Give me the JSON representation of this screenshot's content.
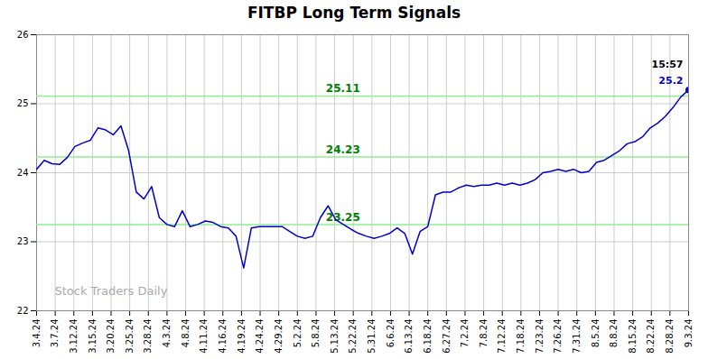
{
  "chart_data": {
    "type": "line",
    "title": "FITBP Long Term Signals",
    "color": "#0000cc",
    "x": [
      0,
      1,
      2,
      3,
      4,
      5,
      6,
      7,
      8,
      9,
      10,
      11,
      12,
      13,
      14,
      15,
      16,
      17,
      18,
      19,
      20,
      21,
      22,
      23,
      24,
      25,
      26,
      27,
      28,
      29,
      30,
      31,
      32,
      33,
      34,
      35,
      36,
      37,
      38,
      39,
      40,
      41,
      42,
      43,
      44,
      45,
      46,
      47,
      48,
      49,
      50,
      51,
      52,
      53,
      54,
      55,
      56,
      57,
      58,
      59,
      60,
      61,
      62,
      63,
      64,
      65,
      66,
      67,
      68,
      69,
      70,
      71,
      72,
      73,
      74,
      75,
      76,
      77,
      78,
      79,
      80,
      81,
      82,
      83,
      84,
      85
    ],
    "values": [
      24.05,
      24.18,
      24.13,
      24.12,
      24.22,
      24.38,
      24.43,
      24.47,
      24.65,
      24.62,
      24.55,
      24.68,
      24.32,
      23.72,
      23.62,
      23.8,
      23.35,
      23.25,
      23.22,
      23.45,
      23.22,
      23.25,
      23.3,
      23.28,
      23.22,
      23.2,
      23.08,
      22.62,
      23.2,
      23.22,
      23.22,
      23.22,
      23.22,
      23.15,
      23.08,
      23.05,
      23.08,
      23.35,
      23.52,
      23.32,
      23.25,
      23.18,
      23.12,
      23.08,
      23.05,
      23.08,
      23.12,
      23.2,
      23.12,
      22.82,
      23.15,
      23.22,
      23.68,
      23.72,
      23.72,
      23.78,
      23.82,
      23.8,
      23.82,
      23.82,
      23.85,
      23.82,
      23.85,
      23.82,
      23.85,
      23.9,
      24.0,
      24.02,
      24.05,
      24.02,
      24.05,
      24.0,
      24.02,
      24.15,
      24.18,
      24.25,
      24.32,
      24.42,
      24.45,
      24.52,
      24.65,
      24.72,
      24.82,
      24.95,
      25.1,
      25.2
    ],
    "xlim": [
      0,
      85
    ],
    "xticks": [
      {
        "value": 0,
        "label": "3.4.24"
      },
      {
        "value": 2.4285714285714284,
        "label": "3.7.24"
      },
      {
        "value": 4.857142857142857,
        "label": "3.12.24"
      },
      {
        "value": 7.285714285714286,
        "label": "3.15.24"
      },
      {
        "value": 9.714285714285714,
        "label": "3.20.24"
      },
      {
        "value": 12.142857142857142,
        "label": "3.25.24"
      },
      {
        "value": 14.571428571428571,
        "label": "3.28.24"
      },
      {
        "value": 17,
        "label": "4.3.24"
      },
      {
        "value": 19.428571428571427,
        "label": "4.8.24"
      },
      {
        "value": 21.857142857142858,
        "label": "4.11.24"
      },
      {
        "value": 24.285714285714285,
        "label": "4.16.24"
      },
      {
        "value": 26.714285714285715,
        "label": "4.19.24"
      },
      {
        "value": 29.142857142857142,
        "label": "4.24.24"
      },
      {
        "value": 31.571428571428573,
        "label": "4.29.24"
      },
      {
        "value": 34,
        "label": "5.2.24"
      },
      {
        "value": 36.42857142857143,
        "label": "5.8.24"
      },
      {
        "value": 38.857142857142854,
        "label": "5.13.24"
      },
      {
        "value": 41.285714285714285,
        "label": "5.22.24"
      },
      {
        "value": 43.714285714285715,
        "label": "5.31.24"
      },
      {
        "value": 46.142857142857146,
        "label": "6.6.24"
      },
      {
        "value": 48.57142857142857,
        "label": "6.13.24"
      },
      {
        "value": 51,
        "label": "6.18.24"
      },
      {
        "value": 53.42857142857143,
        "label": "6.27.24"
      },
      {
        "value": 55.857142857142854,
        "label": "7.2.24"
      },
      {
        "value": 58.285714285714285,
        "label": "7.8.24"
      },
      {
        "value": 60.714285714285715,
        "label": "7.12.24"
      },
      {
        "value": 63.142857142857146,
        "label": "7.18.24"
      },
      {
        "value": 65.57142857142857,
        "label": "7.23.24"
      },
      {
        "value": 68,
        "label": "7.26.24"
      },
      {
        "value": 70.42857142857143,
        "label": "7.31.24"
      },
      {
        "value": 72.85714285714286,
        "label": "8.5.24"
      },
      {
        "value": 75.28571428571429,
        "label": "8.8.24"
      },
      {
        "value": 77.71428571428571,
        "label": "8.15.24"
      },
      {
        "value": 80.14285714285714,
        "label": "8.22.24"
      },
      {
        "value": 82.57142857142857,
        "label": "8.28.24"
      },
      {
        "value": 85,
        "label": "9.3.24"
      }
    ],
    "ylim": [
      22,
      26
    ],
    "yticks": [
      22,
      23,
      24,
      25,
      26
    ],
    "grid": true,
    "hlines": [
      {
        "y": 25.11,
        "label": "25.11",
        "color": "#90ee90",
        "label_color": "#008000"
      },
      {
        "y": 24.23,
        "label": "24.23",
        "color": "#90ee90",
        "label_color": "#008000"
      },
      {
        "y": 23.25,
        "label": "23.25",
        "color": "#90ee90",
        "label_color": "#008000"
      }
    ],
    "annotations": [
      {
        "x": 85,
        "y": 25.2,
        "text": "15:57",
        "color": "#000000"
      },
      {
        "x": 85,
        "y": 25.2,
        "text": "25.2",
        "color": "#0000cc"
      }
    ],
    "watermark": "Stock Traders Daily",
    "watermark_color": "#aaaaaa"
  }
}
